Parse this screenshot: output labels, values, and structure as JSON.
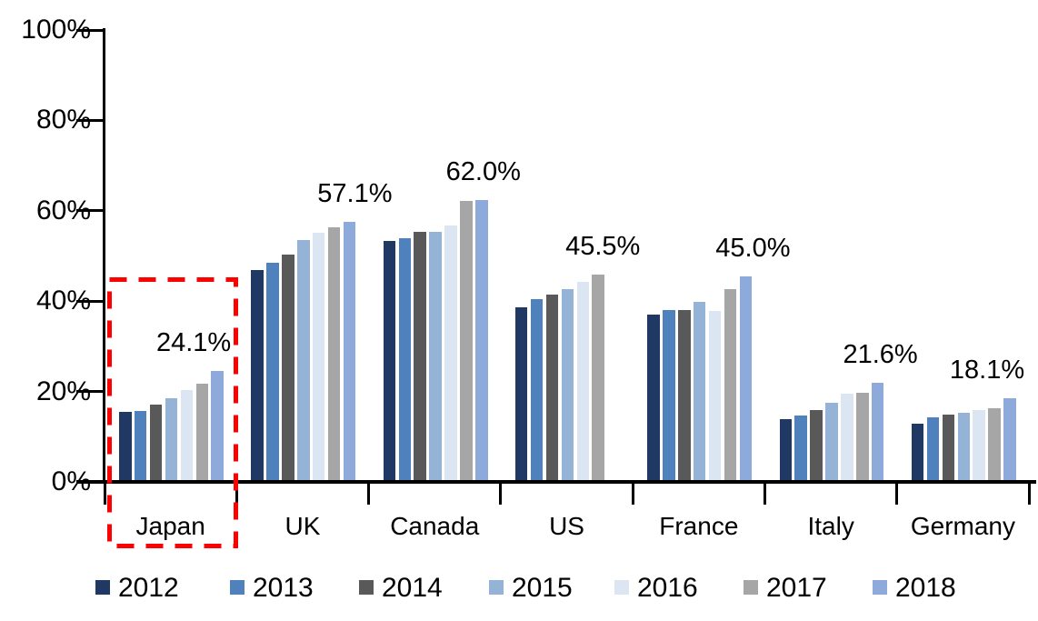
{
  "chart_data": {
    "type": "bar",
    "title": "",
    "xlabel": "",
    "ylabel": "",
    "ylim": [
      0,
      100
    ],
    "ytick_step": 20,
    "ytick_suffix": "%",
    "grid": false,
    "legend_position": "bottom",
    "categories": [
      "Japan",
      "UK",
      "Canada",
      "US",
      "France",
      "Italy",
      "Germany"
    ],
    "series": [
      {
        "name": "2012",
        "color": "#1F3864",
        "values": [
          15.0,
          46.5,
          53.0,
          38.2,
          36.6,
          13.4,
          12.4
        ]
      },
      {
        "name": "2013",
        "color": "#4F81BD",
        "values": [
          15.3,
          48.0,
          53.5,
          40.1,
          37.7,
          14.2,
          13.9
        ]
      },
      {
        "name": "2014",
        "color": "#595959",
        "values": [
          16.8,
          50.0,
          55.0,
          41.0,
          37.6,
          15.6,
          14.5
        ]
      },
      {
        "name": "2015",
        "color": "#95B3D7",
        "values": [
          18.2,
          53.2,
          54.9,
          42.2,
          39.4,
          17.1,
          14.8
        ]
      },
      {
        "name": "2016",
        "color": "#DCE6F2",
        "values": [
          20.0,
          54.8,
          56.3,
          43.8,
          37.4,
          19.2,
          15.5
        ]
      },
      {
        "name": "2017",
        "color": "#A6A6A6",
        "values": [
          21.3,
          56.0,
          61.8,
          45.5,
          42.3,
          19.4,
          16.0
        ]
      },
      {
        "name": "2018",
        "color": "#8EAADB",
        "values": [
          24.1,
          57.1,
          62.0,
          null,
          45.0,
          21.6,
          18.1
        ]
      }
    ],
    "peak_labels": [
      "24.1%",
      "57.1%",
      "62.0%",
      "45.5%",
      "45.0%",
      "21.6%",
      "18.1%"
    ],
    "highlight": {
      "target_category": "Japan",
      "shape": "dashed-rectangle",
      "color": "#FF0000"
    }
  }
}
